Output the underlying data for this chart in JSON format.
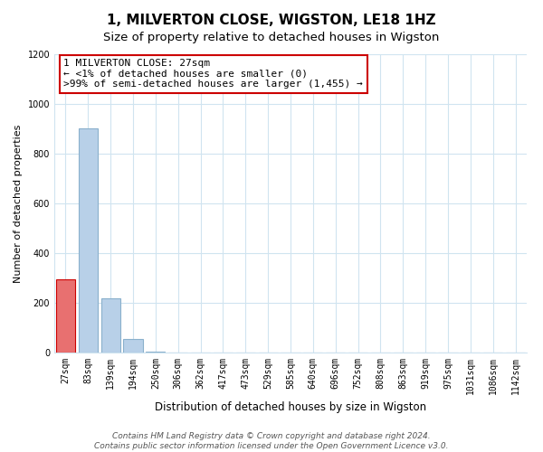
{
  "title": "1, MILVERTON CLOSE, WIGSTON, LE18 1HZ",
  "subtitle": "Size of property relative to detached houses in Wigston",
  "xlabel": "Distribution of detached houses by size in Wigston",
  "ylabel": "Number of detached properties",
  "bar_labels": [
    "27sqm",
    "83sqm",
    "139sqm",
    "194sqm",
    "250sqm",
    "306sqm",
    "362sqm",
    "417sqm",
    "473sqm",
    "529sqm",
    "585sqm",
    "640sqm",
    "696sqm",
    "752sqm",
    "808sqm",
    "863sqm",
    "919sqm",
    "975sqm",
    "1031sqm",
    "1086sqm",
    "1142sqm"
  ],
  "bar_values": [
    295,
    900,
    220,
    55,
    5,
    0,
    0,
    0,
    0,
    0,
    0,
    0,
    0,
    0,
    0,
    0,
    0,
    0,
    0,
    0,
    0
  ],
  "bar_color": "#b8d0e8",
  "bar_edge_color": "#8ab0cc",
  "highlight_bar_index": 0,
  "highlight_bar_color": "#e87070",
  "highlight_bar_edge_color": "#cc0000",
  "ylim": [
    0,
    1200
  ],
  "yticks": [
    0,
    200,
    400,
    600,
    800,
    1000,
    1200
  ],
  "annotation_line1": "1 MILVERTON CLOSE: 27sqm",
  "annotation_line2": "← <1% of detached houses are smaller (0)",
  "annotation_line3": ">99% of semi-detached houses are larger (1,455) →",
  "footer_text": "Contains HM Land Registry data © Crown copyright and database right 2024.\nContains public sector information licensed under the Open Government Licence v3.0.",
  "title_fontsize": 11,
  "subtitle_fontsize": 9.5,
  "xlabel_fontsize": 8.5,
  "ylabel_fontsize": 8,
  "tick_fontsize": 7,
  "annotation_fontsize": 8,
  "footer_fontsize": 6.5,
  "grid_color": "#d0e4f0"
}
